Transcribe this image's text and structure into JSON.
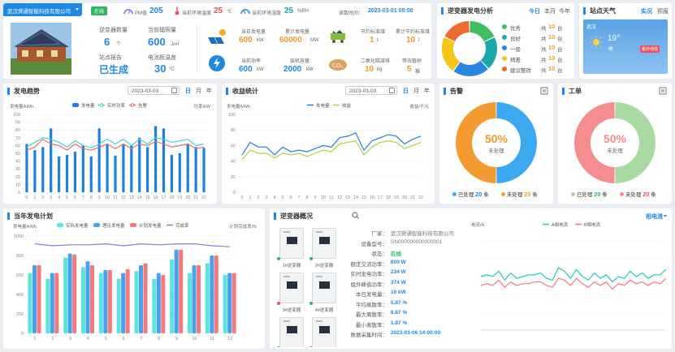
{
  "topbar": {
    "company": "武汉舜通智能科技有限公司",
    "status": "在线",
    "pm_label": "PM值",
    "pm_value": "205",
    "temp_label": "当前环境温度",
    "temp_value": "25",
    "temp_unit": "℃",
    "hum_label": "当前环境湿度",
    "hum_value": "25",
    "hum_unit": "%RH",
    "read_label": "读数时间：",
    "read_time": "2023-03-01 09:00"
  },
  "station": {
    "inverter_label": "逆变器数量",
    "inverter_value": "6",
    "inverter_unit": "个",
    "irr_label": "当前辐照量",
    "irr_value": "600",
    "irr_unit": "J/㎡",
    "report_label": "站点报告",
    "report_value": "已生成",
    "temp_label": "电池板温度",
    "temp_value": "30",
    "temp_unit": "℃"
  },
  "gen": {
    "today_label": "当日发电量",
    "today_value": "600",
    "today_unit": "kW",
    "total_label": "累计发电量",
    "total_value": "60000",
    "total_unit": "MW",
    "power_label": "当前功率",
    "power_value": "600",
    "power_unit": "kW",
    "cap_label": "装机容量",
    "cap_value": "2000",
    "cap_unit": "kW",
    "coal_label": "节约标准煤",
    "coal_value": "1",
    "coal_unit": "t",
    "coal_total_label": "累计节约标准煤",
    "coal_total_value": "10",
    "coal_total_unit": "t",
    "co2_label": "二氧化碳减排",
    "co2_value": "10",
    "co2_unit": "kg",
    "tree_label": "等效植树",
    "tree_value": "5",
    "tree_unit": "棵"
  },
  "inv_analysis": {
    "title": "逆变器发电分析",
    "tabs": [
      "今日",
      "本月",
      "今年"
    ],
    "items": [
      {
        "label": "优秀",
        "prefix": "共",
        "value": "10",
        "unit": "台",
        "color": "#3fbf5f"
      },
      {
        "label": "良好",
        "prefix": "共",
        "value": "10",
        "unit": "台",
        "color": "#1aa9a6"
      },
      {
        "label": "一般",
        "prefix": "共",
        "value": "10",
        "unit": "台",
        "color": "#2a86e0"
      },
      {
        "label": "稍差",
        "prefix": "共",
        "value": "10",
        "unit": "台",
        "color": "#f5c518"
      },
      {
        "label": "建议整改",
        "prefix": "共",
        "value": "10",
        "unit": "台",
        "color": "#ef6a2e"
      }
    ],
    "donut": [
      {
        "value": 18,
        "color": "#3fbf5f"
      },
      {
        "value": 20,
        "color": "#1aa9a6"
      },
      {
        "value": 22,
        "color": "#2a86e0"
      },
      {
        "value": 22,
        "color": "#f5c518"
      },
      {
        "value": 18,
        "color": "#ef6a2e"
      }
    ]
  },
  "weather": {
    "title": "站点天气",
    "tabs": [
      "实况",
      "预报"
    ],
    "city": "武汉",
    "temp": "19°",
    "cond": "晴",
    "badge": "紫外线强"
  },
  "trend": {
    "title": "发电趋势",
    "date": "2023-03-03",
    "tabs": [
      "日",
      "月",
      "年"
    ]
  },
  "revenue": {
    "title": "收益统计",
    "date": "2023-03-03",
    "tabs": [
      "日",
      "月",
      "年"
    ]
  },
  "alarm": {
    "title": "告警",
    "percent": "50%",
    "center_label": "未处理",
    "legend": [
      {
        "label": "已处理",
        "value": "20",
        "unit": "条",
        "color": "#3aa9ef"
      },
      {
        "label": "未处理",
        "value": "20",
        "unit": "条",
        "color": "#f39b30"
      }
    ]
  },
  "workorder": {
    "title": "工单",
    "percent": "50%",
    "center_label": "未处理",
    "legend": [
      {
        "label": "已处理",
        "value": "20",
        "unit": "条",
        "color": "#a8d9a0"
      },
      {
        "label": "未处理",
        "value": "20",
        "unit": "条",
        "color": "#f58c8e"
      }
    ]
  },
  "yearly": {
    "title": "当年发电计划"
  },
  "overview": {
    "title": "逆变器概况",
    "tab_current": "相电流",
    "inverters": [
      "1#逆变器",
      "2#逆变器",
      "3#逆变器",
      "4#逆变器",
      "5#逆变器",
      "6#逆变器"
    ],
    "fields": [
      {
        "label": "厂家：",
        "value": "武汉舜通智能科技有限公司",
        "cls": "gray"
      },
      {
        "label": "设备型号：",
        "value": "SN000000000000001",
        "cls": "gray"
      },
      {
        "label": "状态：",
        "value": "在线",
        "cls": "green"
      },
      {
        "label": "额定交流功率：",
        "value": "600 W",
        "cls": "blue"
      },
      {
        "label": "实时发电功率：",
        "value": "234 W",
        "cls": "blue"
      },
      {
        "label": "组件峰值功率：",
        "value": "374 W",
        "cls": "blue"
      },
      {
        "label": "本日发电量：",
        "value": "10 kW",
        "cls": "blue"
      },
      {
        "label": "平均离散率：",
        "value": "5.87 %",
        "cls": "blue"
      },
      {
        "label": "最大离散率：",
        "value": "6.87 %",
        "cls": "blue"
      },
      {
        "label": "最小离散率：",
        "value": "1.87 %",
        "cls": "blue"
      },
      {
        "label": "数据采集时间：",
        "value": "2023-03-06 14:00:00",
        "cls": "blue"
      }
    ]
  },
  "chart_data": [
    {
      "id": "trend",
      "type": "bar",
      "ylabel": "发电量/kWh",
      "y2label": "功率/kW",
      "ylim": [
        0,
        100
      ],
      "yticks": [
        0,
        10,
        20,
        30,
        40,
        50,
        60,
        70,
        80,
        90,
        100
      ],
      "categories": [
        "0",
        "1",
        "2",
        "3",
        "4",
        "5",
        "6",
        "7",
        "8",
        "9",
        "10",
        "11",
        "12",
        "13",
        "14",
        "15",
        "16",
        "17",
        "18",
        "19",
        "20",
        "21",
        "22"
      ],
      "legend": [
        {
          "name": "发电量",
          "color": "#1e7fe0"
        },
        {
          "name": "实时功率",
          "color": "#3dd6d0"
        },
        {
          "name": "告警",
          "color": "#f06a6a"
        }
      ],
      "bars": [
        62,
        54,
        58,
        82,
        46,
        48,
        52,
        60,
        46,
        82,
        62,
        47,
        62,
        60,
        70,
        58,
        85,
        82,
        48,
        50,
        62,
        58,
        57
      ],
      "line1": [
        58,
        64,
        70,
        68,
        64,
        58,
        66,
        60,
        57,
        62,
        68,
        62,
        68,
        60,
        68,
        62,
        70,
        68,
        64,
        66,
        68,
        60,
        62
      ],
      "line2": [
        54,
        58,
        68,
        62,
        60,
        54,
        62,
        56,
        54,
        58,
        62,
        56,
        62,
        56,
        62,
        60,
        65,
        62,
        58,
        60,
        62,
        56,
        58
      ]
    },
    {
      "id": "revenue",
      "type": "line",
      "ylabel": "发电量/kWh",
      "y2label": "收益/千元",
      "ylim": [
        0,
        100
      ],
      "yticks": [
        0,
        20,
        40,
        60,
        80,
        100
      ],
      "categories": [
        "0",
        "1",
        "2",
        "3",
        "4",
        "5",
        "6",
        "7",
        "8",
        "9",
        "10",
        "11",
        "12",
        "13",
        "14",
        "15",
        "16",
        "17",
        "18",
        "19",
        "20",
        "21",
        "22"
      ],
      "series": [
        {
          "name": "发电量",
          "color": "#1e7fe0",
          "values": [
            48,
            64,
            58,
            58,
            48,
            58,
            52,
            54,
            52,
            56,
            60,
            58,
            70,
            72,
            76,
            54,
            66,
            70,
            74,
            72,
            62,
            68,
            72
          ]
        },
        {
          "name": "收益",
          "color": "#a8d63f",
          "values": [
            42,
            54,
            50,
            50,
            44,
            50,
            48,
            50,
            46,
            50,
            54,
            52,
            62,
            64,
            66,
            48,
            58,
            64,
            66,
            64,
            56,
            60,
            64
          ]
        }
      ]
    },
    {
      "id": "yearly",
      "type": "bar",
      "ylabel": "发电量/kWh",
      "y2label": "计划完成率/%",
      "ylim": [
        0,
        1000
      ],
      "yticks": [
        0,
        200,
        400,
        600,
        800,
        1000
      ],
      "categories": [
        "1",
        "2",
        "3",
        "4",
        "5",
        "6",
        "7",
        "8",
        "9",
        "10",
        "11",
        "12"
      ],
      "legend": [
        {
          "name": "实际发电量",
          "color": "#5be3e0"
        },
        {
          "name": "理论发电量",
          "color": "#4aa0ea"
        },
        {
          "name": "计划发电量",
          "color": "#f47a7e"
        },
        {
          "name": "完成率",
          "color": "#9a72e2"
        }
      ],
      "series": [
        {
          "name": "实际发电量",
          "values": [
            620,
            560,
            780,
            680,
            620,
            560,
            640,
            560,
            760,
            620,
            720,
            600
          ]
        },
        {
          "name": "理论发电量",
          "values": [
            700,
            620,
            820,
            740,
            650,
            620,
            700,
            620,
            860,
            700,
            800,
            620
          ]
        },
        {
          "name": "计划发电量",
          "values": [
            700,
            620,
            810,
            700,
            650,
            660,
            720,
            600,
            860,
            700,
            800,
            620
          ]
        }
      ],
      "rate": [
        92,
        90,
        91,
        91,
        92,
        90,
        92,
        91,
        92,
        92,
        90,
        89
      ]
    },
    {
      "id": "current",
      "type": "line",
      "ylabel": "电流/A",
      "ylim": [
        0,
        100
      ],
      "yticks": [
        0,
        20,
        40,
        60,
        80,
        100
      ],
      "legend": [
        {
          "name": "A相电流",
          "color": "#2bc4c0"
        },
        {
          "name": "B相电流",
          "color": "#f47a7e"
        }
      ],
      "series": [
        {
          "name": "A相电流",
          "values": [
            60,
            62,
            60,
            66,
            56,
            64,
            58,
            60,
            62,
            62,
            64,
            58,
            56,
            70,
            66,
            58,
            68,
            60,
            56,
            64,
            58,
            62,
            54,
            60,
            58,
            66,
            60,
            64,
            58,
            62,
            62,
            68
          ]
        },
        {
          "name": "B相电流",
          "values": [
            50,
            52,
            50,
            56,
            48,
            54,
            50,
            52,
            52,
            54,
            54,
            50,
            48,
            58,
            56,
            50,
            58,
            52,
            48,
            54,
            50,
            54,
            46,
            52,
            50,
            56,
            52,
            54,
            50,
            54,
            52,
            58
          ]
        }
      ]
    }
  ]
}
